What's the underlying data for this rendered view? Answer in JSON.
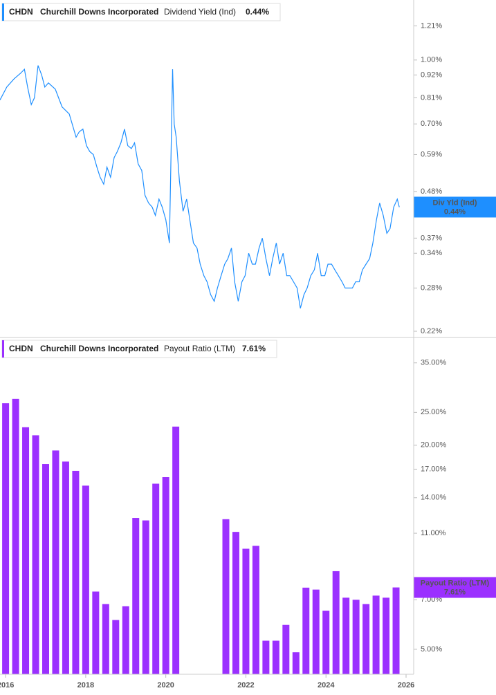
{
  "chart_data": [
    {
      "type": "line",
      "log_scale": true,
      "legend": {
        "ticker": "CHDN",
        "company": "Churchill Downs Incorporated"
      },
      "last_value": {
        "value": 0.44,
        "label": "0.44%",
        "badge": "Div Yld (Ind)",
        "color": "#1e8fff"
      },
      "xlim": [
        2015.86,
        2026.19
      ],
      "ylim": [
        0.2125,
        1.398
      ],
      "yticks": [
        {
          "value": 1.21,
          "label": "1.21%"
        },
        {
          "value": 1.0,
          "label": "1.00%"
        },
        {
          "value": 0.92,
          "label": "0.92%"
        },
        {
          "value": 0.81,
          "label": "0.81%"
        },
        {
          "value": 0.7,
          "label": "0.70%"
        },
        {
          "value": 0.59,
          "label": "0.59%"
        },
        {
          "value": 0.48,
          "label": "0.48%"
        },
        {
          "value": 0.37,
          "label": "0.37%"
        },
        {
          "value": 0.34,
          "label": "0.34%"
        },
        {
          "value": 0.28,
          "label": "0.28%"
        },
        {
          "value": 0.22,
          "label": "0.22%"
        }
      ],
      "x": [
        2015.86,
        2016.03,
        2016.21,
        2016.38,
        2016.47,
        2016.55,
        2016.64,
        2016.72,
        2016.81,
        2016.9,
        2016.98,
        2017.07,
        2017.24,
        2017.41,
        2017.59,
        2017.76,
        2017.84,
        2017.93,
        2018.02,
        2018.1,
        2018.19,
        2018.28,
        2018.36,
        2018.45,
        2018.53,
        2018.62,
        2018.71,
        2018.79,
        2018.88,
        2018.97,
        2019.05,
        2019.14,
        2019.22,
        2019.31,
        2019.4,
        2019.48,
        2019.57,
        2019.66,
        2019.74,
        2019.83,
        2019.91,
        2020.0,
        2020.09,
        2020.17,
        2020.21,
        2020.26,
        2020.34,
        2020.43,
        2020.52,
        2020.6,
        2020.69,
        2020.78,
        2020.86,
        2020.95,
        2021.03,
        2021.12,
        2021.21,
        2021.29,
        2021.38,
        2021.47,
        2021.55,
        2021.64,
        2021.72,
        2021.81,
        2021.9,
        2021.98,
        2022.07,
        2022.16,
        2022.24,
        2022.33,
        2022.41,
        2022.5,
        2022.59,
        2022.67,
        2022.76,
        2022.84,
        2022.93,
        2023.02,
        2023.1,
        2023.19,
        2023.28,
        2023.36,
        2023.45,
        2023.53,
        2023.62,
        2023.71,
        2023.79,
        2023.88,
        2023.97,
        2024.05,
        2024.14,
        2024.22,
        2024.31,
        2024.4,
        2024.48,
        2024.57,
        2024.66,
        2024.74,
        2024.83,
        2024.91,
        2025.0,
        2025.09,
        2025.17,
        2025.26,
        2025.34,
        2025.43,
        2025.52,
        2025.6,
        2025.69,
        2025.78,
        2025.83
      ],
      "series": [
        {
          "name": "Dividend Yield (Ind)",
          "color": "#1e8fff",
          "values": [
            0.8,
            0.86,
            0.9,
            0.93,
            0.95,
            0.86,
            0.78,
            0.81,
            0.97,
            0.92,
            0.86,
            0.88,
            0.85,
            0.77,
            0.74,
            0.65,
            0.67,
            0.68,
            0.62,
            0.6,
            0.59,
            0.55,
            0.52,
            0.5,
            0.55,
            0.52,
            0.58,
            0.6,
            0.63,
            0.68,
            0.62,
            0.61,
            0.63,
            0.56,
            0.54,
            0.47,
            0.45,
            0.44,
            0.42,
            0.46,
            0.44,
            0.41,
            0.36,
            0.95,
            0.7,
            0.65,
            0.51,
            0.43,
            0.46,
            0.41,
            0.36,
            0.35,
            0.32,
            0.3,
            0.29,
            0.27,
            0.26,
            0.28,
            0.3,
            0.32,
            0.33,
            0.35,
            0.29,
            0.26,
            0.29,
            0.3,
            0.34,
            0.32,
            0.32,
            0.35,
            0.37,
            0.33,
            0.3,
            0.33,
            0.36,
            0.32,
            0.34,
            0.3,
            0.3,
            0.29,
            0.28,
            0.25,
            0.27,
            0.28,
            0.3,
            0.31,
            0.34,
            0.3,
            0.3,
            0.32,
            0.32,
            0.31,
            0.3,
            0.29,
            0.28,
            0.28,
            0.28,
            0.29,
            0.29,
            0.31,
            0.32,
            0.33,
            0.36,
            0.41,
            0.45,
            0.42,
            0.38,
            0.39,
            0.44,
            0.46,
            0.44
          ]
        }
      ]
    },
    {
      "type": "bar",
      "log_scale": true,
      "legend": {
        "ticker": "CHDN",
        "company": "Churchill Downs Incorporated"
      },
      "last_value": {
        "value": 7.61,
        "label": "7.61%",
        "badge": "Payout Ratio (LTM)",
        "color": "#9b30ff"
      },
      "xlim": [
        2015.86,
        2026.19
      ],
      "xticks": [
        {
          "value": 2016,
          "label": "2016"
        },
        {
          "value": 2018,
          "label": "2018"
        },
        {
          "value": 2020,
          "label": "2020"
        },
        {
          "value": 2022,
          "label": "2022"
        },
        {
          "value": 2024,
          "label": "2024"
        },
        {
          "value": 2026,
          "label": "2026"
        }
      ],
      "ylim": [
        4.22,
        41.2
      ],
      "yticks": [
        {
          "value": 35,
          "label": "35.00%"
        },
        {
          "value": 25,
          "label": "25.00%"
        },
        {
          "value": 20,
          "label": "20.00%"
        },
        {
          "value": 17,
          "label": "17.00%"
        },
        {
          "value": 14,
          "label": "14.00%"
        },
        {
          "value": 11,
          "label": "11.00%"
        },
        {
          "value": 7,
          "label": "7.00%"
        },
        {
          "value": 5,
          "label": "5.00%"
        }
      ],
      "x": [
        2016.0,
        2016.25,
        2016.5,
        2016.75,
        2017.0,
        2017.25,
        2017.5,
        2017.75,
        2018.0,
        2018.25,
        2018.5,
        2018.75,
        2019.0,
        2019.25,
        2019.5,
        2019.75,
        2020.0,
        2020.25,
        2020.5,
        2020.75,
        2021.0,
        2021.25,
        2021.5,
        2021.75,
        2022.0,
        2022.25,
        2022.5,
        2022.75,
        2023.0,
        2023.25,
        2023.5,
        2023.75,
        2024.0,
        2024.25,
        2024.5,
        2024.75,
        2025.0,
        2025.25,
        2025.5,
        2025.75
      ],
      "series": [
        {
          "name": "Payout Ratio (LTM)",
          "color": "#9b30ff",
          "values": [
            26.6,
            27.4,
            22.6,
            21.4,
            17.6,
            19.3,
            17.9,
            16.8,
            15.2,
            7.4,
            6.8,
            6.1,
            6.7,
            12.2,
            12.0,
            15.4,
            16.1,
            22.7,
            null,
            null,
            null,
            null,
            12.1,
            11.1,
            9.9,
            10.1,
            5.3,
            5.3,
            5.9,
            4.9,
            7.6,
            7.5,
            6.5,
            8.5,
            7.1,
            7.0,
            6.8,
            7.2,
            7.1,
            7.61
          ]
        }
      ]
    }
  ]
}
